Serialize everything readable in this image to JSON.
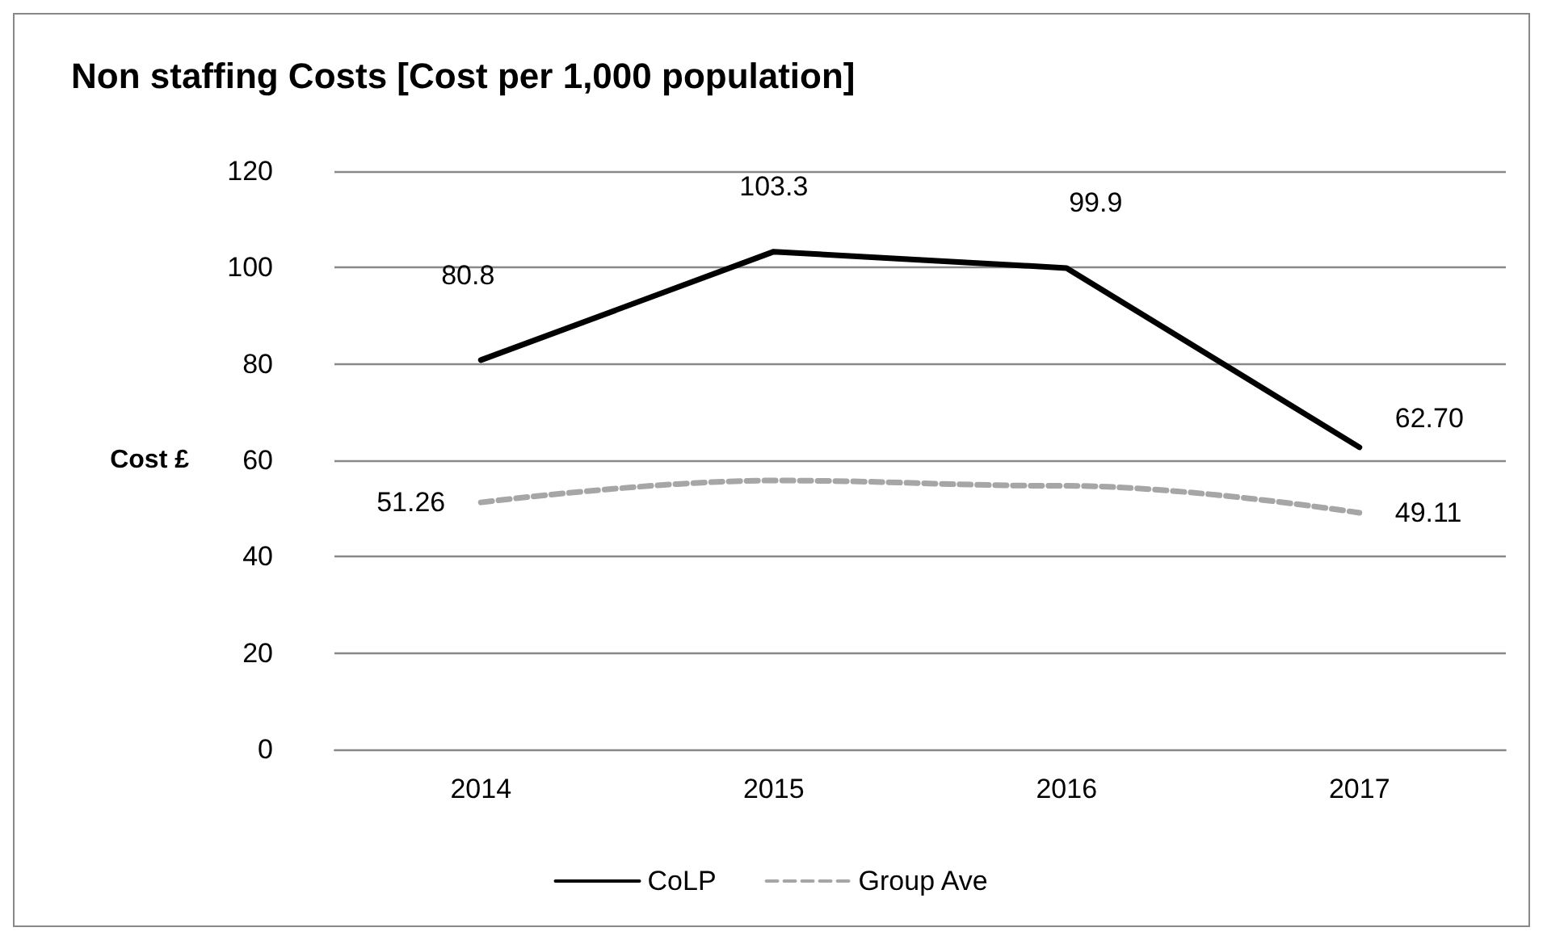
{
  "chart_data": {
    "type": "line",
    "title": "Non staffing Costs [Cost per 1,000 population]",
    "ylabel": "Cost £",
    "categories": [
      "2014",
      "2015",
      "2016",
      "2017"
    ],
    "series": [
      {
        "name": "CoLP",
        "color": "#000000",
        "values": [
          80.8,
          103.3,
          99.9,
          62.7
        ],
        "value_labels": [
          "80.8",
          "103.3",
          "99.9",
          "62.70"
        ],
        "line_style": "solid"
      },
      {
        "name": "Group Ave",
        "color": "#a6a6a6",
        "values": [
          51.26,
          55.8,
          54.7,
          49.11
        ],
        "value_labels": [
          "51.26",
          null,
          null,
          "49.11"
        ],
        "line_style": "dashed"
      }
    ],
    "ylim": [
      0,
      120
    ],
    "yticks": [
      0,
      20,
      40,
      60,
      80,
      100,
      120
    ],
    "grid": "y",
    "legend": "bottom",
    "marker": "none"
  }
}
